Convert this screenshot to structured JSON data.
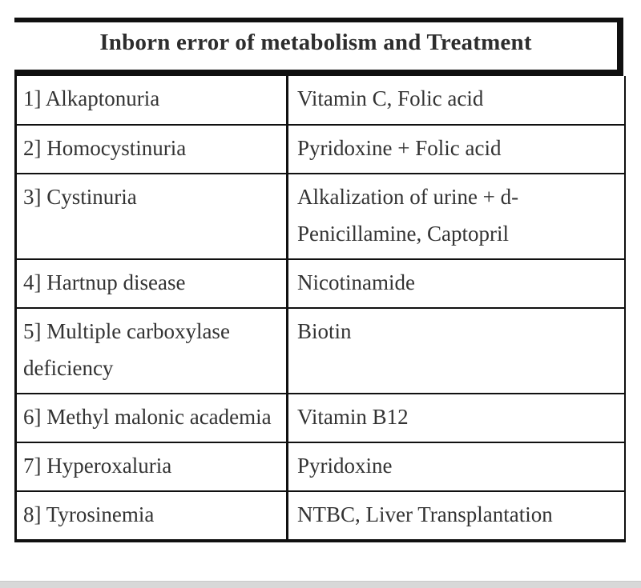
{
  "header": {
    "title": "Inborn error of metabolism and Treatment"
  },
  "table": {
    "rows": [
      {
        "disease": "1] Alkaptonuria",
        "treatment": "Vitamin C, Folic acid"
      },
      {
        "disease": "2] Homocystinuria",
        "treatment": "Pyridoxine + Folic acid"
      },
      {
        "disease": "3] Cystinuria",
        "treatment": "Alkalization of urine + d-Penicillamine, Captopril"
      },
      {
        "disease": "4] Hartnup disease",
        "treatment": "Nicotinamide"
      },
      {
        "disease": "5] Multiple carboxylase deficiency",
        "treatment": "Biotin"
      },
      {
        "disease": "6] Methyl malonic academia",
        "treatment": "Vitamin B12"
      },
      {
        "disease": "7] Hyperoxaluria",
        "treatment": "Pyridoxine"
      },
      {
        "disease": "8] Tyrosinemia",
        "treatment": "NTBC, Liver Transplantation"
      }
    ]
  },
  "colors": {
    "border": "#101010",
    "text": "#333333",
    "title_text": "#2d2d2d",
    "background": "#ffffff",
    "bottom_strip": "#d8d8d8"
  }
}
